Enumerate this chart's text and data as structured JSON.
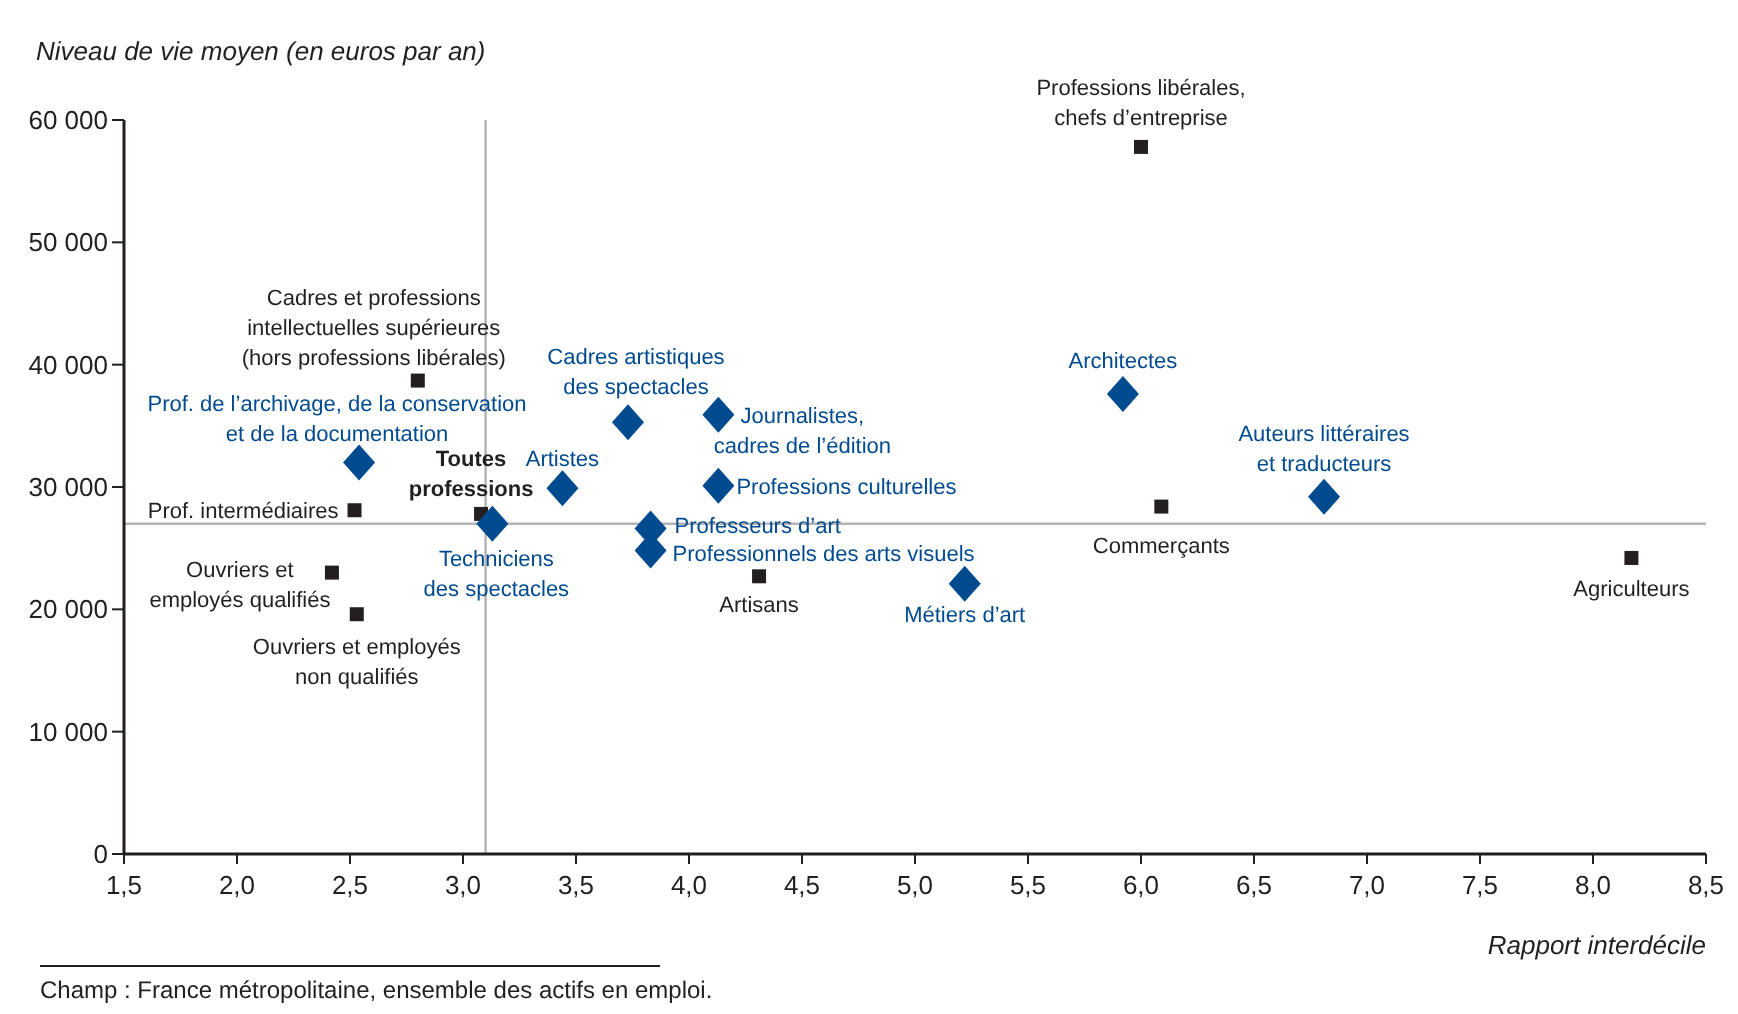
{
  "chart_data": {
    "type": "scatter",
    "xlabel": "Rapport interdécile",
    "ylabel": "Niveau de vie moyen (en euros par an)",
    "xlim": [
      1.5,
      8.5
    ],
    "xticks": [
      {
        "value": 1.5,
        "label": "1,5"
      },
      {
        "value": 2,
        "label": "2,0"
      },
      {
        "value": 2.5,
        "label": "2,5"
      },
      {
        "value": 3,
        "label": "3,0"
      },
      {
        "value": 3.5,
        "label": "3,5"
      },
      {
        "value": 4,
        "label": "4,0"
      },
      {
        "value": 4.5,
        "label": "4,5"
      },
      {
        "value": 5,
        "label": "5,0"
      },
      {
        "value": 5.5,
        "label": "5,5"
      },
      {
        "value": 6,
        "label": "6,0"
      },
      {
        "value": 6.5,
        "label": "6,5"
      },
      {
        "value": 7,
        "label": "7,0"
      },
      {
        "value": 7.5,
        "label": "7,5"
      },
      {
        "value": 8,
        "label": "8,0"
      },
      {
        "value": 8.5,
        "label": "8,5"
      }
    ],
    "ylim": [
      0,
      60000
    ],
    "yticks": [
      0,
      {
        "value": 10000,
        "label": "10 000"
      },
      {
        "value": 20000,
        "label": "20 000"
      },
      {
        "value": 30000,
        "label": "30 000"
      },
      {
        "value": 40000,
        "label": "40 000"
      },
      {
        "value": 50000,
        "label": "50 000"
      },
      {
        "value": 60000,
        "label": "60 000"
      }
    ],
    "grid": false,
    "series": [
      {
        "color": "#231f20",
        "marker": "square",
        "x": [
          6.0,
          2.8,
          2.52,
          3.08,
          2.42,
          2.53,
          4.31,
          6.09,
          8.17
        ],
        "values": [
          57800,
          38700,
          28100,
          27800,
          23000,
          19600,
          22700,
          28400,
          24200
        ]
      },
      {
        "color": "#004a8f",
        "marker": "diamond",
        "x": [
          2.54,
          3.13,
          3.44,
          3.73,
          4.13,
          4.13,
          3.83,
          3.83,
          5.22,
          5.92,
          6.81
        ],
        "values": [
          32000,
          27000,
          29900,
          35300,
          35900,
          30100,
          26600,
          24800,
          22100,
          37600,
          29200
        ]
      }
    ],
    "ref_lines": [
      {
        "axis": "x",
        "value": 3.1,
        "color": "#b3b3b3"
      },
      {
        "axis": "y",
        "value": 27000,
        "color": "#b3b3b3"
      }
    ],
    "annotations": [
      {
        "text": "Professions libérales,\nchefs d’entreprise",
        "x": 6.0,
        "y": 57800
      },
      {
        "text": "Cadres et professions\nintellectuelles supérieures\n(hors professions libérales)",
        "x": 2.8,
        "y": 38700
      },
      {
        "text": "Prof. intermédiaires",
        "x": 2.52,
        "y": 28100
      },
      {
        "text": "Toutes\nprofessions",
        "x": 3.08,
        "y": 27800
      },
      {
        "text": "Ouvriers et\nemployés qualifiés",
        "x": 2.42,
        "y": 23000
      },
      {
        "text": "Ouvriers et employés\nnon qualifiés",
        "x": 2.53,
        "y": 19600
      },
      {
        "text": "Artisans",
        "x": 4.31,
        "y": 22700
      },
      {
        "text": "Commerçants",
        "x": 6.09,
        "y": 28400
      },
      {
        "text": "Agriculteurs",
        "x": 8.17,
        "y": 24200
      },
      {
        "text": "Prof. de l’archivage, de la conservation\net de la documentation",
        "x": 2.54,
        "y": 32000
      },
      {
        "text": "Techniciens\ndes spectacles",
        "x": 3.13,
        "y": 27000
      },
      {
        "text": "Artistes",
        "x": 3.44,
        "y": 29900
      },
      {
        "text": "Cadres artistiques\ndes spectacles",
        "x": 3.73,
        "y": 35300
      },
      {
        "text": "Journalistes,\ncadres de l’édition",
        "x": 4.13,
        "y": 35900
      },
      {
        "text": "Professions culturelles",
        "x": 4.13,
        "y": 30100
      },
      {
        "text": "Professeurs d’art",
        "x": 3.83,
        "y": 26600
      },
      {
        "text": "Professionnels des arts visuels",
        "x": 3.83,
        "y": 24800
      },
      {
        "text": "Métiers d’art",
        "x": 5.22,
        "y": 22100
      },
      {
        "text": "Architectes",
        "x": 5.92,
        "y": 37600
      },
      {
        "text": "Auteurs littéraires\net traducteurs",
        "x": 6.81,
        "y": 29200
      },
      "Champ : France métropolitaine, ensemble des actifs en emploi."
    ]
  }
}
